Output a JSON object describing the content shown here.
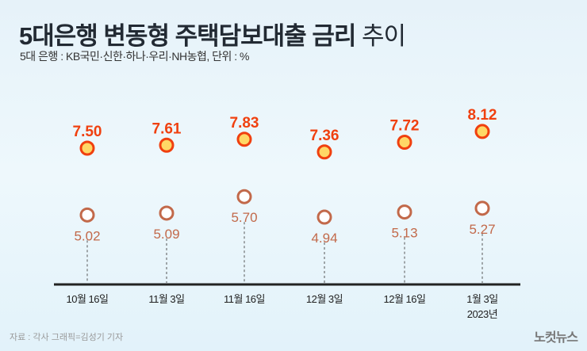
{
  "title_bold": "5대은행 변동형 주택담보대출 금리",
  "title_light": "추이",
  "subtitle": "5대 은행 : KB국민·신한·하나·우리·NH농협, 단위 : %",
  "source": "자료 : 각사   그래픽=김성기 기자",
  "logo": "노컷뉴스",
  "chart_data": {
    "type": "range",
    "title": "5대은행 변동형 주택담보대출 금리 추이",
    "unit": "%",
    "categories": [
      "10월 16일",
      "11월 3일",
      "11월 16일",
      "12월 3일",
      "12월 16일",
      "1월 3일"
    ],
    "category_sub": [
      "",
      "",
      "",
      "",
      "",
      "2023년"
    ],
    "series": [
      {
        "name": "max",
        "values": [
          7.5,
          7.61,
          7.83,
          7.36,
          7.72,
          8.12
        ]
      },
      {
        "name": "min",
        "values": [
          5.02,
          5.09,
          5.7,
          4.94,
          5.13,
          5.27
        ]
      }
    ],
    "colors": {
      "max": "#f0400f",
      "min": "#c2694a",
      "max_fill": "#ffd866"
    }
  }
}
